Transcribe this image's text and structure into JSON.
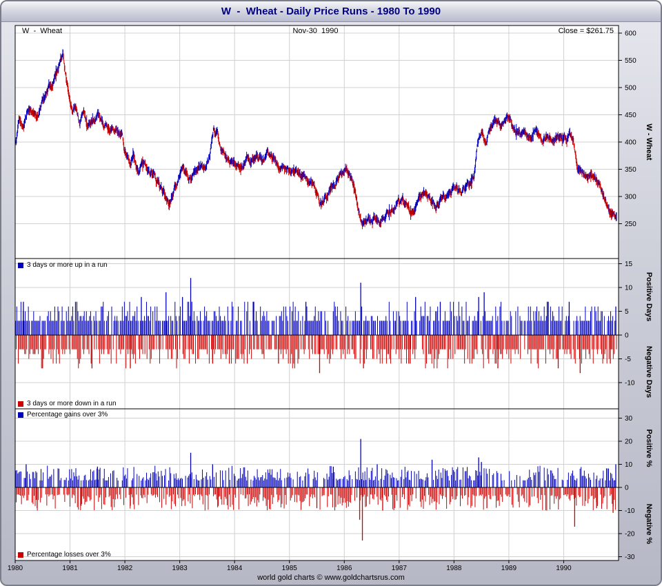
{
  "window": {
    "title": "W  -  Wheat - Daily Price Runs - 1980 To 1990"
  },
  "header": {
    "instrument": "W  -  Wheat",
    "date": "Nov-30  1990",
    "close": "Close = $261.75"
  },
  "footer": "world gold charts © www.goldchartsrus.com",
  "colors": {
    "up": "#0000bb",
    "down": "#cc0000",
    "grid": "#d0d0d0",
    "axis": "#000000",
    "title": "#000080",
    "plot_bg": "#ffffff"
  },
  "chart_data": [
    {
      "type": "candlestick",
      "title": "W - Wheat daily price 1980-1990",
      "ylabel": "W  -  Wheat",
      "ylim": [
        250,
        600
      ],
      "yticks": [
        600,
        550,
        500,
        450,
        400,
        350,
        300,
        250
      ],
      "x_ticks": [
        1980,
        1981,
        1982,
        1983,
        1984,
        1985,
        1986,
        1987,
        1988,
        1989,
        1990
      ],
      "close_value": 261.75,
      "last_date": "Nov-30 1990",
      "anchors": [
        [
          1980.0,
          395
        ],
        [
          1980.08,
          440
        ],
        [
          1980.15,
          420
        ],
        [
          1980.22,
          450
        ],
        [
          1980.3,
          460
        ],
        [
          1980.38,
          445
        ],
        [
          1980.45,
          465
        ],
        [
          1980.52,
          480
        ],
        [
          1980.6,
          495
        ],
        [
          1980.68,
          505
        ],
        [
          1980.75,
          525
        ],
        [
          1980.83,
          550
        ],
        [
          1980.88,
          555
        ],
        [
          1980.93,
          515
        ],
        [
          1981.0,
          480
        ],
        [
          1981.05,
          450
        ],
        [
          1981.1,
          465
        ],
        [
          1981.18,
          430
        ],
        [
          1981.25,
          455
        ],
        [
          1981.33,
          425
        ],
        [
          1981.42,
          445
        ],
        [
          1981.5,
          460
        ],
        [
          1981.6,
          440
        ],
        [
          1981.7,
          430
        ],
        [
          1981.78,
          420
        ],
        [
          1981.85,
          432
        ],
        [
          1981.93,
          425
        ],
        [
          1982.0,
          385
        ],
        [
          1982.08,
          360
        ],
        [
          1982.15,
          368
        ],
        [
          1982.25,
          348
        ],
        [
          1982.35,
          355
        ],
        [
          1982.45,
          340
        ],
        [
          1982.55,
          335
        ],
        [
          1982.65,
          315
        ],
        [
          1982.75,
          300
        ],
        [
          1982.8,
          290
        ],
        [
          1982.88,
          310
        ],
        [
          1982.95,
          328
        ],
        [
          1983.03,
          348
        ],
        [
          1983.1,
          342
        ],
        [
          1983.18,
          330
        ],
        [
          1983.28,
          338
        ],
        [
          1983.38,
          350
        ],
        [
          1983.45,
          352
        ],
        [
          1983.55,
          372
        ],
        [
          1983.62,
          428
        ],
        [
          1983.68,
          412
        ],
        [
          1983.75,
          392
        ],
        [
          1983.85,
          368
        ],
        [
          1983.95,
          352
        ],
        [
          1984.05,
          348
        ],
        [
          1984.15,
          355
        ],
        [
          1984.22,
          372
        ],
        [
          1984.3,
          362
        ],
        [
          1984.4,
          374
        ],
        [
          1984.5,
          366
        ],
        [
          1984.6,
          372
        ],
        [
          1984.7,
          360
        ],
        [
          1984.8,
          348
        ],
        [
          1984.9,
          354
        ],
        [
          1985.0,
          344
        ],
        [
          1985.1,
          342
        ],
        [
          1985.2,
          345
        ],
        [
          1985.3,
          328
        ],
        [
          1985.4,
          322
        ],
        [
          1985.5,
          300
        ],
        [
          1985.58,
          286
        ],
        [
          1985.68,
          296
        ],
        [
          1985.78,
          318
        ],
        [
          1985.88,
          338
        ],
        [
          1985.95,
          342
        ],
        [
          1986.05,
          350
        ],
        [
          1986.12,
          334
        ],
        [
          1986.2,
          305
        ],
        [
          1986.28,
          268
        ],
        [
          1986.35,
          248
        ],
        [
          1986.42,
          252
        ],
        [
          1986.5,
          248
        ],
        [
          1986.58,
          264
        ],
        [
          1986.65,
          258
        ],
        [
          1986.75,
          268
        ],
        [
          1986.85,
          276
        ],
        [
          1986.95,
          288
        ],
        [
          1987.05,
          293
        ],
        [
          1987.15,
          278
        ],
        [
          1987.22,
          270
        ],
        [
          1987.32,
          288
        ],
        [
          1987.42,
          300
        ],
        [
          1987.48,
          310
        ],
        [
          1987.58,
          290
        ],
        [
          1987.68,
          286
        ],
        [
          1987.78,
          292
        ],
        [
          1987.88,
          303
        ],
        [
          1987.95,
          308
        ],
        [
          1988.05,
          318
        ],
        [
          1988.15,
          306
        ],
        [
          1988.25,
          312
        ],
        [
          1988.35,
          335
        ],
        [
          1988.42,
          385
        ],
        [
          1988.5,
          420
        ],
        [
          1988.56,
          405
        ],
        [
          1988.65,
          422
        ],
        [
          1988.75,
          435
        ],
        [
          1988.85,
          428
        ],
        [
          1988.95,
          442
        ],
        [
          1989.02,
          445
        ],
        [
          1989.1,
          428
        ],
        [
          1989.2,
          416
        ],
        [
          1989.3,
          420
        ],
        [
          1989.4,
          406
        ],
        [
          1989.5,
          412
        ],
        [
          1989.6,
          400
        ],
        [
          1989.7,
          414
        ],
        [
          1989.8,
          402
        ],
        [
          1989.9,
          408
        ],
        [
          1990.0,
          405
        ],
        [
          1990.1,
          414
        ],
        [
          1990.18,
          402
        ],
        [
          1990.25,
          355
        ],
        [
          1990.33,
          350
        ],
        [
          1990.42,
          342
        ],
        [
          1990.5,
          340
        ],
        [
          1990.6,
          328
        ],
        [
          1990.7,
          305
        ],
        [
          1990.8,
          282
        ],
        [
          1990.9,
          266
        ],
        [
          1990.96,
          262
        ]
      ]
    },
    {
      "type": "bar",
      "title": "Daily run lengths (3 days or more)",
      "pos_label": "3 days or more up in a run",
      "neg_label": "3 days or more down in a run",
      "ylabel_pos": "Positive Days",
      "ylabel_neg": "Negative Days",
      "ylim": [
        -10,
        15
      ],
      "yticks": [
        15,
        10,
        5,
        0,
        -5,
        -10
      ],
      "typical_pos_range": [
        3,
        7
      ],
      "typical_neg_range": [
        -3,
        -7
      ],
      "spikes_pos": [
        [
          1980.15,
          7
        ],
        [
          1981.1,
          7
        ],
        [
          1982.3,
          8
        ],
        [
          1982.75,
          9
        ],
        [
          1983.05,
          8
        ],
        [
          1983.2,
          12
        ],
        [
          1984.35,
          7
        ],
        [
          1985.3,
          7
        ],
        [
          1986.3,
          11
        ],
        [
          1987.3,
          8
        ],
        [
          1987.75,
          7
        ],
        [
          1988.45,
          8
        ],
        [
          1988.55,
          9
        ],
        [
          1989.7,
          7
        ],
        [
          1990.1,
          7
        ],
        [
          1990.95,
          6
        ]
      ],
      "spikes_neg": [
        [
          1980.5,
          -7
        ],
        [
          1981.4,
          -7
        ],
        [
          1982.1,
          -7
        ],
        [
          1983.6,
          -6
        ],
        [
          1984.8,
          -6
        ],
        [
          1985.55,
          -8
        ],
        [
          1986.35,
          -7
        ],
        [
          1987.2,
          -6
        ],
        [
          1988.8,
          -7
        ],
        [
          1989.9,
          -7
        ],
        [
          1990.3,
          -8
        ],
        [
          1990.85,
          -6
        ]
      ]
    },
    {
      "type": "bar",
      "title": "Daily percentage moves over 3%",
      "pos_label": "Percentage gains over 3%",
      "neg_label": "Percentage losses over 3%",
      "ylabel_pos": "Positive %",
      "ylabel_neg": "Negative %",
      "ylim": [
        -30,
        30
      ],
      "yticks": [
        30,
        20,
        10,
        0,
        -10,
        -20,
        -30
      ],
      "typical_pos_range": [
        3,
        9
      ],
      "typical_neg_range": [
        -3,
        -10
      ],
      "spikes_pos": [
        [
          1980.2,
          10
        ],
        [
          1981.5,
          9
        ],
        [
          1983.2,
          15
        ],
        [
          1983.6,
          10
        ],
        [
          1985.8,
          9
        ],
        [
          1986.3,
          21
        ],
        [
          1986.6,
          10
        ],
        [
          1987.6,
          12
        ],
        [
          1988.45,
          13
        ],
        [
          1988.5,
          11
        ],
        [
          1990.95,
          10
        ]
      ],
      "spikes_neg": [
        [
          1980.4,
          -9
        ],
        [
          1981.2,
          -8
        ],
        [
          1982.1,
          -8
        ],
        [
          1983.7,
          -8
        ],
        [
          1985.5,
          -9
        ],
        [
          1986.28,
          -14
        ],
        [
          1986.33,
          -23
        ],
        [
          1986.7,
          -10
        ],
        [
          1988.6,
          -9
        ],
        [
          1990.2,
          -17
        ],
        [
          1990.6,
          -9
        ],
        [
          1990.9,
          -11
        ]
      ]
    }
  ]
}
